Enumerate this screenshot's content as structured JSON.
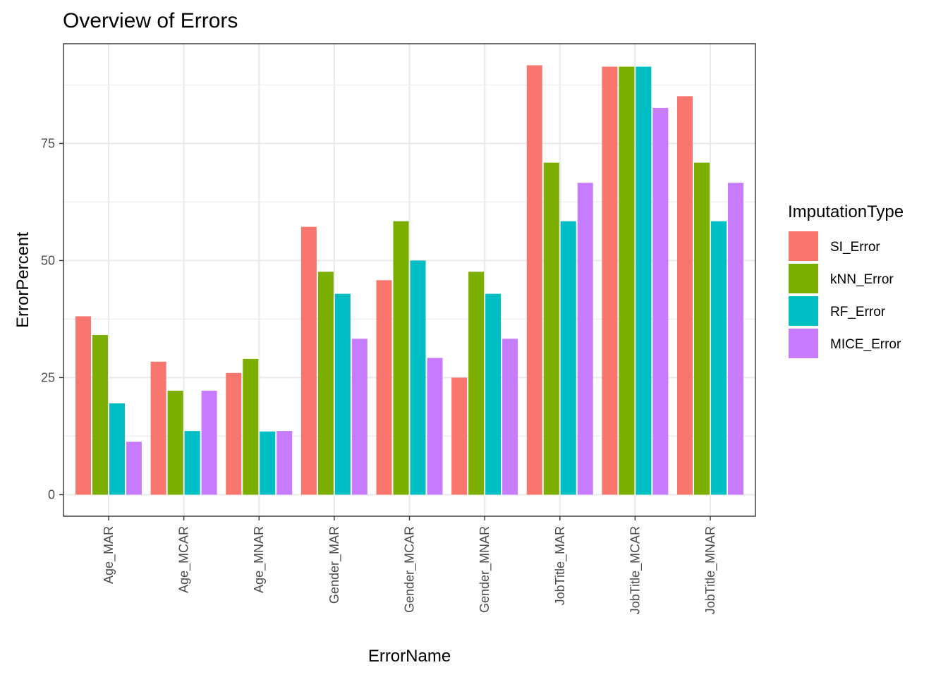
{
  "chart_data": {
    "type": "bar",
    "title": "Overview of Errors",
    "xlabel": "ErrorName",
    "ylabel": "ErrorPercent",
    "categories": [
      "Age_MAR",
      "Age_MCAR",
      "Age_MNAR",
      "Gender_MAR",
      "Gender_MCAR",
      "Gender_MNAR",
      "JobTitle_MAR",
      "JobTitle_MCAR",
      "JobTitle_MNAR"
    ],
    "series": [
      {
        "name": "SI_Error",
        "color": "#F8766D",
        "values": [
          38.1,
          28.4,
          26.0,
          57.2,
          45.8,
          25.0,
          91.7,
          91.4,
          85.1
        ]
      },
      {
        "name": "kNN_Error",
        "color": "#7CAE00",
        "values": [
          34.1,
          22.2,
          29.0,
          47.6,
          58.4,
          47.6,
          70.9,
          91.4,
          70.9
        ]
      },
      {
        "name": "RF_Error",
        "color": "#00BFC4",
        "values": [
          19.5,
          13.6,
          13.5,
          42.9,
          50.0,
          42.9,
          58.4,
          91.4,
          58.4
        ]
      },
      {
        "name": "MICE_Error",
        "color": "#C77CFF",
        "values": [
          11.3,
          22.2,
          13.6,
          33.3,
          29.2,
          33.3,
          66.6,
          82.6,
          66.6
        ]
      }
    ],
    "ylim": [
      -4.6,
      96.3
    ],
    "yticks": [
      0,
      25,
      50,
      75
    ],
    "grid": true,
    "legend": {
      "title": "ImputationType",
      "position": "right"
    }
  }
}
